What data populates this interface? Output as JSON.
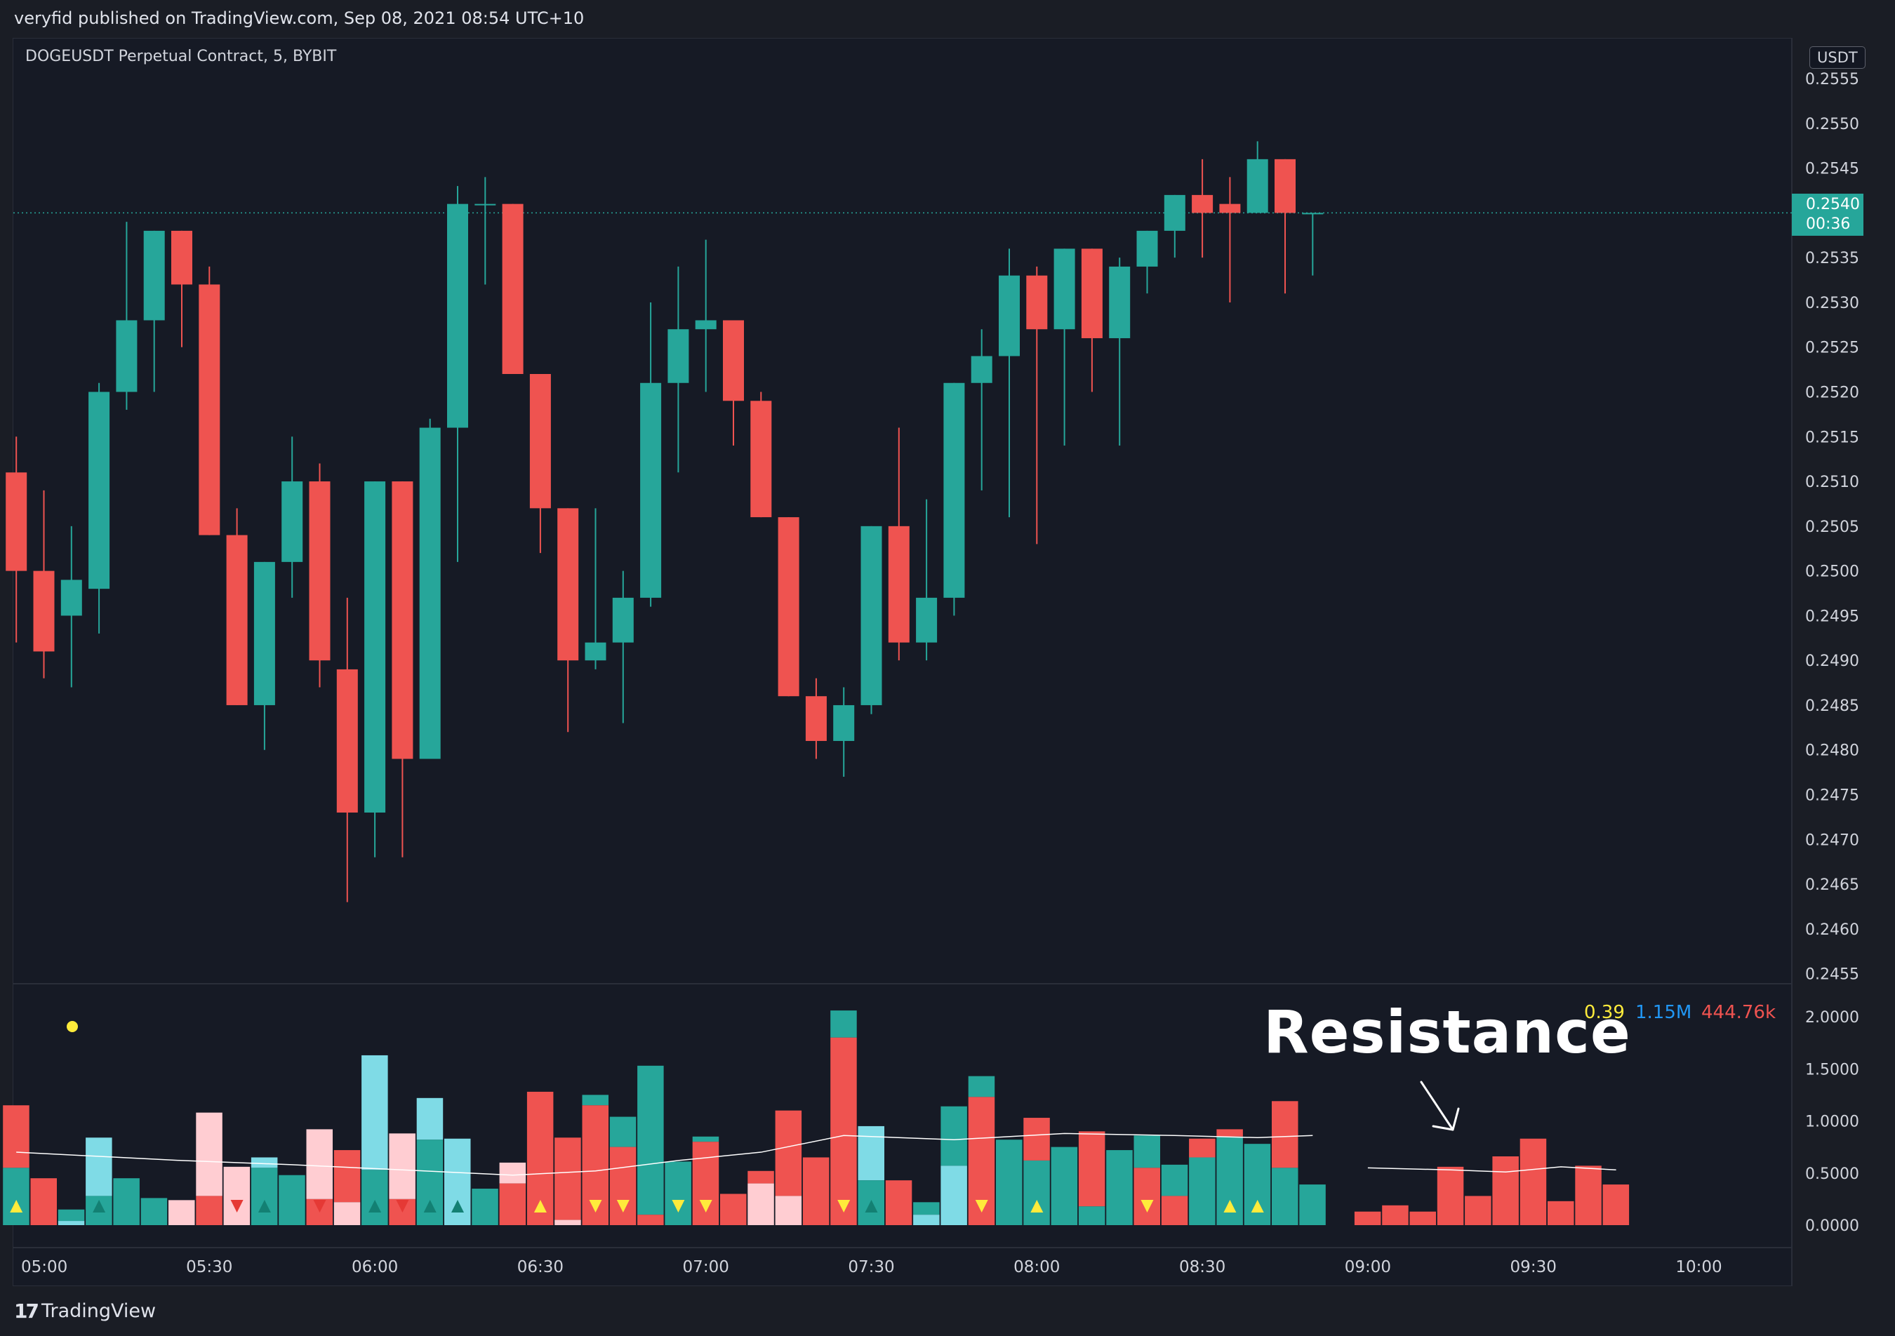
{
  "header": {
    "publisher": "veryfid published on TradingView.com, Sep 08, 2021 08:54 UTC+10"
  },
  "chart_title": "DOGEUSDT Perpetual Contract, 5, BYBIT",
  "currency_label": "USDT",
  "last_price": {
    "price": "0.2540",
    "countdown": "00:36"
  },
  "indicator_legend": {
    "v1": "0.39",
    "v2": "1.15M",
    "v3": "444.76k"
  },
  "annotation": {
    "text": "Resistance"
  },
  "footer": {
    "brand": "TradingView"
  },
  "colors": {
    "up": "#26a69a",
    "down": "#ef5350",
    "up_light": "#7fdbe6",
    "down_light": "#ffcdd2",
    "background": "#161a25",
    "signal": "#ffeb3b",
    "legend_blue": "#2196f3"
  },
  "chart_data": [
    {
      "type": "candlestick",
      "title": "DOGEUSDT Perpetual Contract, 5, BYBIT",
      "xlabel": "",
      "ylabel": "",
      "x_ticks": [
        "05:00",
        "05:30",
        "06:00",
        "06:30",
        "07:00",
        "07:30",
        "08:00",
        "08:30",
        "09:00",
        "09:30",
        "10:00"
      ],
      "y_ticks": [
        "0.2455",
        "0.2460",
        "0.2465",
        "0.2470",
        "0.2475",
        "0.2480",
        "0.2485",
        "0.2490",
        "0.2495",
        "0.2500",
        "0.2505",
        "0.2510",
        "0.2515",
        "0.2520",
        "0.2525",
        "0.2530",
        "0.2535",
        "0.2540",
        "0.2545",
        "0.2550",
        "0.2555"
      ],
      "ylim": [
        0.24545,
        0.25572
      ],
      "last_price_line": 0.254,
      "candles": [
        {
          "t": "04:55",
          "o": 0.2511,
          "h": 0.2515,
          "l": 0.2492,
          "c": 0.25
        },
        {
          "t": "05:00",
          "o": 0.25,
          "h": 0.2509,
          "l": 0.2488,
          "c": 0.2491
        },
        {
          "t": "05:05",
          "o": 0.2495,
          "h": 0.2505,
          "l": 0.2487,
          "c": 0.2499
        },
        {
          "t": "05:10",
          "o": 0.2498,
          "h": 0.2521,
          "l": 0.2493,
          "c": 0.252
        },
        {
          "t": "05:15",
          "o": 0.252,
          "h": 0.2539,
          "l": 0.2518,
          "c": 0.2528
        },
        {
          "t": "05:20",
          "o": 0.2528,
          "h": 0.2538,
          "l": 0.252,
          "c": 0.2538
        },
        {
          "t": "05:25",
          "o": 0.2538,
          "h": 0.2538,
          "l": 0.2525,
          "c": 0.2532
        },
        {
          "t": "05:30",
          "o": 0.2532,
          "h": 0.2534,
          "l": 0.2504,
          "c": 0.2504
        },
        {
          "t": "05:35",
          "o": 0.2504,
          "h": 0.2507,
          "l": 0.2485,
          "c": 0.2485
        },
        {
          "t": "05:40",
          "o": 0.2485,
          "h": 0.2501,
          "l": 0.248,
          "c": 0.2501
        },
        {
          "t": "05:45",
          "o": 0.2501,
          "h": 0.2515,
          "l": 0.2497,
          "c": 0.251
        },
        {
          "t": "05:50",
          "o": 0.251,
          "h": 0.2512,
          "l": 0.2487,
          "c": 0.249
        },
        {
          "t": "05:55",
          "o": 0.2489,
          "h": 0.2497,
          "l": 0.2463,
          "c": 0.2473
        },
        {
          "t": "06:00",
          "o": 0.2473,
          "h": 0.251,
          "l": 0.2468,
          "c": 0.251
        },
        {
          "t": "06:05",
          "o": 0.251,
          "h": 0.251,
          "l": 0.2468,
          "c": 0.2479
        },
        {
          "t": "06:10",
          "o": 0.2479,
          "h": 0.2517,
          "l": 0.2479,
          "c": 0.2516
        },
        {
          "t": "06:15",
          "o": 0.2516,
          "h": 0.2543,
          "l": 0.2501,
          "c": 0.2541
        },
        {
          "t": "06:20",
          "o": 0.2541,
          "h": 0.2544,
          "l": 0.2532,
          "c": 0.2541
        },
        {
          "t": "06:25",
          "o": 0.2541,
          "h": 0.2541,
          "l": 0.2522,
          "c": 0.2522
        },
        {
          "t": "06:30",
          "o": 0.2522,
          "h": 0.2522,
          "l": 0.2502,
          "c": 0.2507
        },
        {
          "t": "06:35",
          "o": 0.2507,
          "h": 0.2507,
          "l": 0.2482,
          "c": 0.249
        },
        {
          "t": "06:40",
          "o": 0.249,
          "h": 0.2507,
          "l": 0.2489,
          "c": 0.2492
        },
        {
          "t": "06:45",
          "o": 0.2492,
          "h": 0.25,
          "l": 0.2483,
          "c": 0.2497
        },
        {
          "t": "06:50",
          "o": 0.2497,
          "h": 0.253,
          "l": 0.2496,
          "c": 0.2521
        },
        {
          "t": "06:55",
          "o": 0.2521,
          "h": 0.2534,
          "l": 0.2511,
          "c": 0.2527
        },
        {
          "t": "07:00",
          "o": 0.2527,
          "h": 0.2537,
          "l": 0.252,
          "c": 0.2528
        },
        {
          "t": "07:05",
          "o": 0.2528,
          "h": 0.2528,
          "l": 0.2514,
          "c": 0.2519
        },
        {
          "t": "07:10",
          "o": 0.2519,
          "h": 0.252,
          "l": 0.2506,
          "c": 0.2506
        },
        {
          "t": "07:15",
          "o": 0.2506,
          "h": 0.2506,
          "l": 0.2486,
          "c": 0.2486
        },
        {
          "t": "07:20",
          "o": 0.2486,
          "h": 0.2488,
          "l": 0.2479,
          "c": 0.2481
        },
        {
          "t": "07:25",
          "o": 0.2481,
          "h": 0.2487,
          "l": 0.2477,
          "c": 0.2485
        },
        {
          "t": "07:30",
          "o": 0.2485,
          "h": 0.2505,
          "l": 0.2484,
          "c": 0.2505
        },
        {
          "t": "07:35",
          "o": 0.2505,
          "h": 0.2516,
          "l": 0.249,
          "c": 0.2492
        },
        {
          "t": "07:40",
          "o": 0.2492,
          "h": 0.2508,
          "l": 0.249,
          "c": 0.2497
        },
        {
          "t": "07:45",
          "o": 0.2497,
          "h": 0.2521,
          "l": 0.2495,
          "c": 0.2521
        },
        {
          "t": "07:50",
          "o": 0.2521,
          "h": 0.2527,
          "l": 0.2509,
          "c": 0.2524
        },
        {
          "t": "07:55",
          "o": 0.2524,
          "h": 0.2536,
          "l": 0.2506,
          "c": 0.2533
        },
        {
          "t": "08:00",
          "o": 0.2533,
          "h": 0.2534,
          "l": 0.2503,
          "c": 0.2527
        },
        {
          "t": "08:05",
          "o": 0.2527,
          "h": 0.2536,
          "l": 0.2514,
          "c": 0.2536
        },
        {
          "t": "08:10",
          "o": 0.2536,
          "h": 0.2536,
          "l": 0.252,
          "c": 0.2526
        },
        {
          "t": "08:15",
          "o": 0.2526,
          "h": 0.2535,
          "l": 0.2514,
          "c": 0.2534
        },
        {
          "t": "08:20",
          "o": 0.2534,
          "h": 0.2538,
          "l": 0.2531,
          "c": 0.2538
        },
        {
          "t": "08:25",
          "o": 0.2538,
          "h": 0.2542,
          "l": 0.2535,
          "c": 0.2542
        },
        {
          "t": "08:30",
          "o": 0.2542,
          "h": 0.2546,
          "l": 0.2535,
          "c": 0.254
        },
        {
          "t": "08:35",
          "o": 0.2541,
          "h": 0.2544,
          "l": 0.253,
          "c": 0.254
        },
        {
          "t": "08:40",
          "o": 0.254,
          "h": 0.2548,
          "l": 0.254,
          "c": 0.2546
        },
        {
          "t": "08:45",
          "o": 0.2546,
          "h": 0.2546,
          "l": 0.2531,
          "c": 0.254
        },
        {
          "t": "08:50",
          "o": 0.254,
          "h": 0.254,
          "l": 0.2533,
          "c": 0.254
        }
      ]
    },
    {
      "type": "bar",
      "title": "",
      "y_ticks": [
        "0.0000",
        "0.5000",
        "1.0000",
        "1.5000",
        "2.0000"
      ],
      "ylim": [
        0,
        2.05
      ],
      "legend_values": [
        "0.39",
        "1.15M",
        "444.76k"
      ],
      "bars": [
        {
          "t": "04:55",
          "top": 1.15,
          "tc": "down",
          "bottom": 0.55,
          "bc": "up",
          "sig": "up"
        },
        {
          "t": "05:00",
          "top": 0.45,
          "tc": "down",
          "bottom": 0,
          "bc": "up",
          "sig": ""
        },
        {
          "t": "05:05",
          "top": 0.15,
          "tc": "up",
          "bottom": 0.04,
          "bc": "up_light",
          "sig": ""
        },
        {
          "t": "05:10",
          "top": 0.84,
          "tc": "up_light",
          "bottom": 0.28,
          "bc": "up",
          "sig": "up_green"
        },
        {
          "t": "05:15",
          "top": 0.45,
          "tc": "up",
          "bottom": 0,
          "bc": "up",
          "sig": ""
        },
        {
          "t": "05:20",
          "top": 0.26,
          "tc": "up",
          "bottom": 0,
          "bc": "up",
          "sig": ""
        },
        {
          "t": "05:25",
          "top": 0.24,
          "tc": "down_light",
          "bottom": 0,
          "bc": "down",
          "sig": ""
        },
        {
          "t": "05:30",
          "top": 1.08,
          "tc": "down_light",
          "bottom": 0.28,
          "bc": "down",
          "sig": ""
        },
        {
          "t": "05:35",
          "top": 0.56,
          "tc": "down_light",
          "bottom": 0,
          "bc": "down",
          "sig": "down_red"
        },
        {
          "t": "05:40",
          "top": 0.65,
          "tc": "up_light",
          "bottom": 0.55,
          "bc": "up",
          "sig": "up_green"
        },
        {
          "t": "05:45",
          "top": 0.48,
          "tc": "up",
          "bottom": 0,
          "bc": "up",
          "sig": ""
        },
        {
          "t": "05:50",
          "top": 0.92,
          "tc": "down_light",
          "bottom": 0.25,
          "bc": "down",
          "sig": "down_red"
        },
        {
          "t": "05:55",
          "top": 0.72,
          "tc": "down",
          "bottom": 0.22,
          "bc": "down_light",
          "sig": ""
        },
        {
          "t": "06:00",
          "top": 1.63,
          "tc": "up_light",
          "bottom": 0.53,
          "bc": "up",
          "sig": "up_green"
        },
        {
          "t": "06:05",
          "top": 0.88,
          "tc": "down_light",
          "bottom": 0.25,
          "bc": "down",
          "sig": "down_red"
        },
        {
          "t": "06:10",
          "top": 1.22,
          "tc": "up_light",
          "bottom": 0.82,
          "bc": "up",
          "sig": "up_green"
        },
        {
          "t": "06:15",
          "top": 0.83,
          "tc": "up_light",
          "bottom": 0,
          "bc": "up",
          "sig": "up_green"
        },
        {
          "t": "06:20",
          "top": 0.35,
          "tc": "up",
          "bottom": 0,
          "bc": "up",
          "sig": ""
        },
        {
          "t": "06:25",
          "top": 0.6,
          "tc": "down_light",
          "bottom": 0.4,
          "bc": "down",
          "sig": ""
        },
        {
          "t": "06:30",
          "top": 1.28,
          "tc": "down",
          "bottom": 0,
          "bc": "down",
          "sig": "up"
        },
        {
          "t": "06:35",
          "top": 0.84,
          "tc": "down",
          "bottom": 0.05,
          "bc": "down_light",
          "sig": ""
        },
        {
          "t": "06:40",
          "top": 1.25,
          "tc": "up",
          "bottom": 1.15,
          "bc": "down",
          "sig": "down"
        },
        {
          "t": "06:45",
          "top": 1.04,
          "tc": "up",
          "bottom": 0.75,
          "bc": "down",
          "sig": "down"
        },
        {
          "t": "06:50",
          "top": 1.53,
          "tc": "up",
          "bottom": 0.1,
          "bc": "down",
          "sig": ""
        },
        {
          "t": "06:55",
          "top": 0.61,
          "tc": "up",
          "bottom": 0,
          "bc": "up",
          "sig": "down"
        },
        {
          "t": "07:00",
          "top": 0.85,
          "tc": "up",
          "bottom": 0.8,
          "bc": "down",
          "sig": "down"
        },
        {
          "t": "07:05",
          "top": 0.3,
          "tc": "down",
          "bottom": 0,
          "bc": "down",
          "sig": ""
        },
        {
          "t": "07:10",
          "top": 0.52,
          "tc": "down",
          "bottom": 0.4,
          "bc": "down_light",
          "sig": ""
        },
        {
          "t": "07:15",
          "top": 1.1,
          "tc": "down",
          "bottom": 0.28,
          "bc": "down_light",
          "sig": ""
        },
        {
          "t": "07:20",
          "top": 0.65,
          "tc": "down",
          "bottom": 0,
          "bc": "down",
          "sig": ""
        },
        {
          "t": "07:25",
          "top": 2.06,
          "tc": "up",
          "bottom": 1.8,
          "bc": "down",
          "sig": "down"
        },
        {
          "t": "07:30",
          "top": 0.95,
          "tc": "up_light",
          "bottom": 0.43,
          "bc": "up",
          "sig": "up_green"
        },
        {
          "t": "07:35",
          "top": 0.43,
          "tc": "down",
          "bottom": 0,
          "bc": "down",
          "sig": ""
        },
        {
          "t": "07:40",
          "top": 0.22,
          "tc": "up",
          "bottom": 0.1,
          "bc": "up_light",
          "sig": ""
        },
        {
          "t": "07:45",
          "top": 1.14,
          "tc": "up",
          "bottom": 0.57,
          "bc": "up_light",
          "sig": ""
        },
        {
          "t": "07:50",
          "top": 1.43,
          "tc": "up",
          "bottom": 1.23,
          "bc": "down",
          "sig": "down"
        },
        {
          "t": "07:55",
          "top": 0.82,
          "tc": "up",
          "bottom": 0,
          "bc": "up",
          "sig": ""
        },
        {
          "t": "08:00",
          "top": 1.03,
          "tc": "down",
          "bottom": 0.62,
          "bc": "up",
          "sig": "up"
        },
        {
          "t": "08:05",
          "top": 0.75,
          "tc": "up",
          "bottom": 0,
          "bc": "up",
          "sig": ""
        },
        {
          "t": "08:10",
          "top": 0.9,
          "tc": "down",
          "bottom": 0.18,
          "bc": "up",
          "sig": ""
        },
        {
          "t": "08:15",
          "top": 0.72,
          "tc": "up",
          "bottom": 0,
          "bc": "up",
          "sig": ""
        },
        {
          "t": "08:20",
          "top": 0.86,
          "tc": "up",
          "bottom": 0.55,
          "bc": "down",
          "sig": "down"
        },
        {
          "t": "08:25",
          "top": 0.58,
          "tc": "up",
          "bottom": 0.28,
          "bc": "down",
          "sig": ""
        },
        {
          "t": "08:30",
          "top": 0.83,
          "tc": "down",
          "bottom": 0.65,
          "bc": "up",
          "sig": ""
        },
        {
          "t": "08:35",
          "top": 0.92,
          "tc": "down",
          "bottom": 0.85,
          "bc": "up",
          "sig": "up"
        },
        {
          "t": "08:40",
          "top": 0.78,
          "tc": "up",
          "bottom": 0,
          "bc": "up",
          "sig": "up"
        },
        {
          "t": "08:45",
          "top": 1.19,
          "tc": "down",
          "bottom": 0.55,
          "bc": "up",
          "sig": ""
        },
        {
          "t": "08:50",
          "top": 0.39,
          "tc": "up",
          "bottom": 0,
          "bc": "up",
          "sig": ""
        },
        {
          "t": "09:00",
          "top": 0.13,
          "tc": "down",
          "bottom": 0,
          "bc": "down",
          "sig": ""
        },
        {
          "t": "09:05",
          "top": 0.19,
          "tc": "down",
          "bottom": 0,
          "bc": "down",
          "sig": ""
        },
        {
          "t": "09:10",
          "top": 0.13,
          "tc": "down",
          "bottom": 0,
          "bc": "down",
          "sig": ""
        },
        {
          "t": "09:15",
          "top": 0.56,
          "tc": "down",
          "bottom": 0,
          "bc": "down",
          "sig": ""
        },
        {
          "t": "09:20",
          "top": 0.28,
          "tc": "down",
          "bottom": 0,
          "bc": "down",
          "sig": ""
        },
        {
          "t": "09:25",
          "top": 0.66,
          "tc": "down",
          "bottom": 0,
          "bc": "down",
          "sig": ""
        },
        {
          "t": "09:30",
          "top": 0.83,
          "tc": "down",
          "bottom": 0,
          "bc": "down",
          "sig": ""
        },
        {
          "t": "09:35",
          "top": 0.23,
          "tc": "down",
          "bottom": 0,
          "bc": "down",
          "sig": ""
        },
        {
          "t": "09:40",
          "top": 0.57,
          "tc": "down",
          "bottom": 0,
          "bc": "down",
          "sig": ""
        },
        {
          "t": "09:45",
          "top": 0.39,
          "tc": "down",
          "bottom": 0,
          "bc": "down",
          "sig": ""
        }
      ],
      "ma_line": [
        {
          "t": "04:55",
          "v": 0.7
        },
        {
          "t": "05:25",
          "v": 0.62
        },
        {
          "t": "05:45",
          "v": 0.58
        },
        {
          "t": "06:05",
          "v": 0.53
        },
        {
          "t": "06:25",
          "v": 0.48
        },
        {
          "t": "06:40",
          "v": 0.52
        },
        {
          "t": "06:55",
          "v": 0.62
        },
        {
          "t": "07:10",
          "v": 0.7
        },
        {
          "t": "07:25",
          "v": 0.86
        },
        {
          "t": "07:45",
          "v": 0.82
        },
        {
          "t": "08:05",
          "v": 0.88
        },
        {
          "t": "08:25",
          "v": 0.86
        },
        {
          "t": "08:40",
          "v": 0.84
        },
        {
          "t": "08:50",
          "v": 0.86
        },
        {
          "t": "09:00",
          "v": 0.55
        },
        {
          "t": "09:15",
          "v": 0.53
        },
        {
          "t": "09:25",
          "v": 0.51
        },
        {
          "t": "09:35",
          "v": 0.56
        },
        {
          "t": "09:45",
          "v": 0.53
        }
      ]
    }
  ]
}
